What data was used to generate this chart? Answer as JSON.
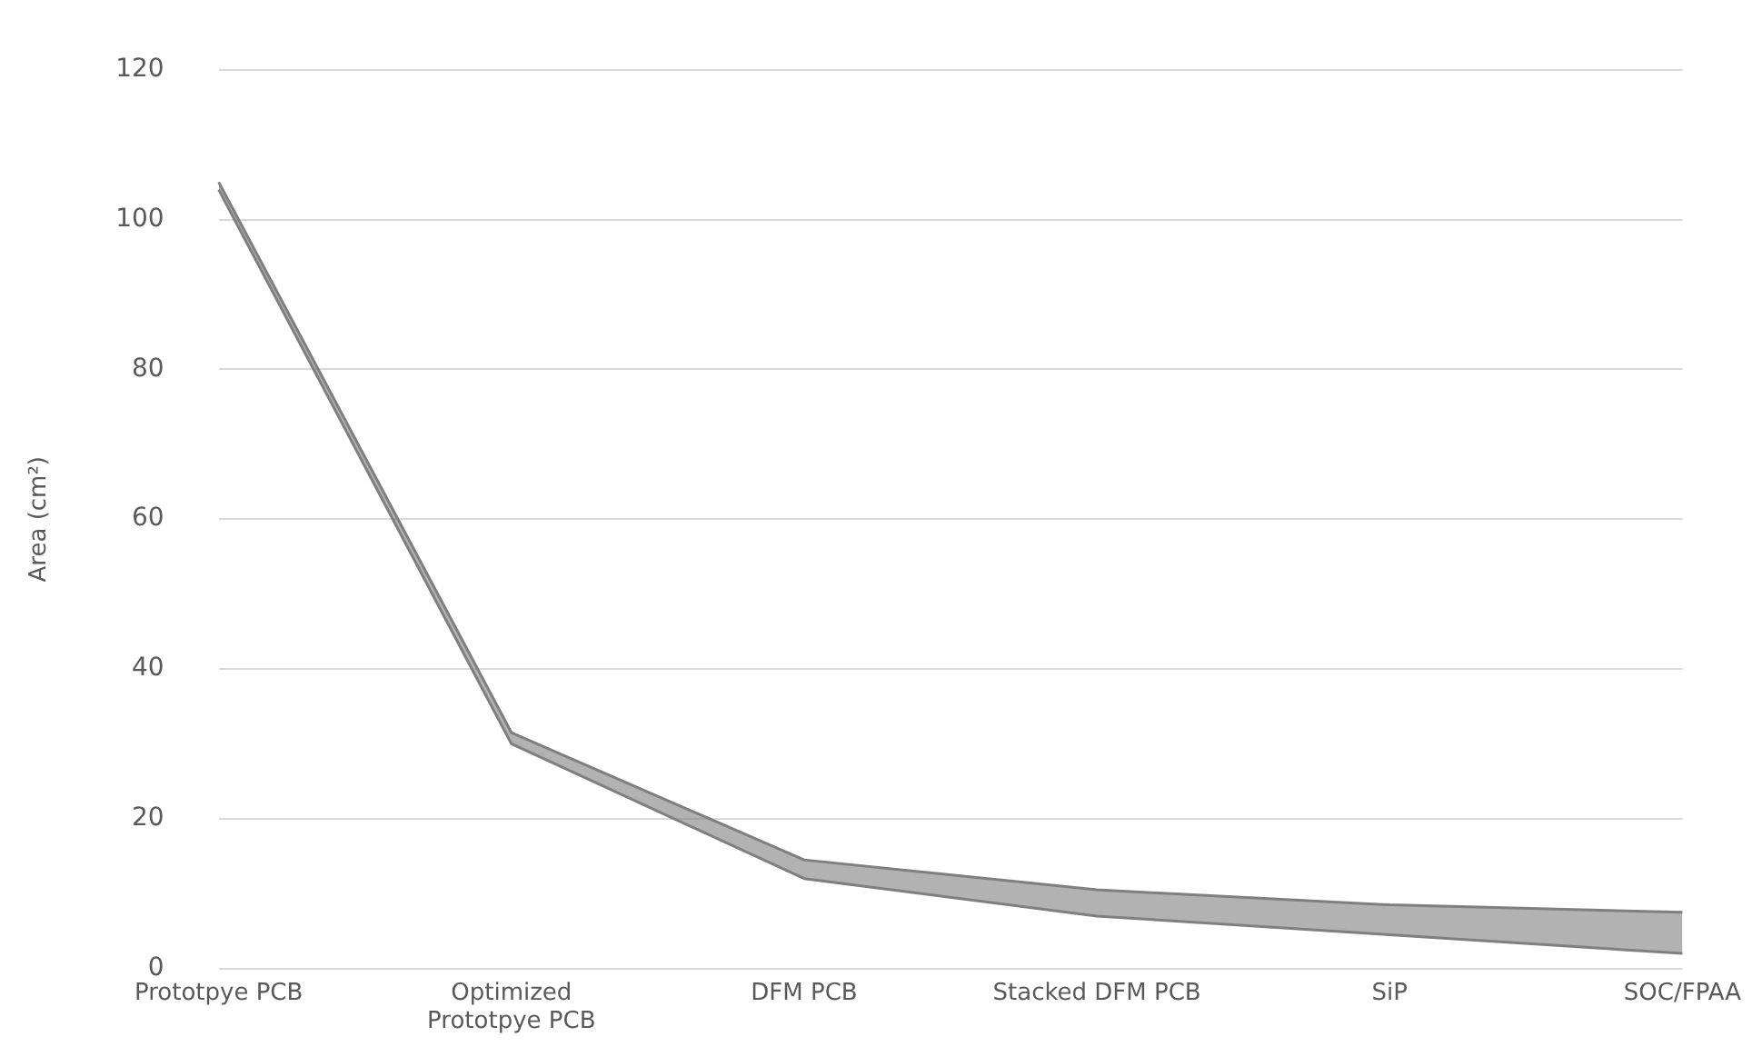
{
  "chart_data": {
    "type": "area",
    "ylabel": "Area (cm²)",
    "categories": [
      "Prototpye PCB",
      "Optimized\nPrototpye PCB",
      "DFM PCB",
      "Stacked DFM PCB",
      "SiP",
      "SOC/FPAA"
    ],
    "series": [
      {
        "type": "line",
        "color": "#7f7f7f",
        "values": [
          104,
          30,
          12,
          7,
          4.5,
          2
        ]
      },
      {
        "color": "#7f7f7f",
        "values": [
          105,
          31.5,
          14.5,
          10.5,
          8.5,
          7.5
        ]
      }
    ],
    "ylim": [
      0,
      120
    ],
    "yticks": [
      0,
      20,
      40,
      60,
      80,
      100,
      120
    ],
    "grid": "y",
    "legend": false
  }
}
